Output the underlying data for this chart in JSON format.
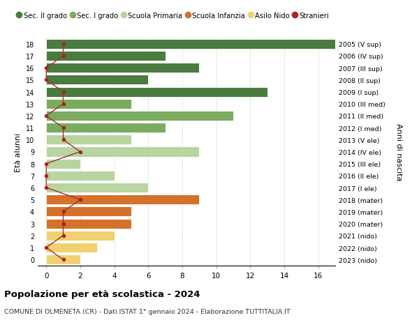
{
  "ages": [
    18,
    17,
    16,
    15,
    14,
    13,
    12,
    11,
    10,
    9,
    8,
    7,
    6,
    5,
    4,
    3,
    2,
    1,
    0
  ],
  "years": [
    "2005 (V sup)",
    "2006 (IV sup)",
    "2007 (III sup)",
    "2008 (II sup)",
    "2009 (I sup)",
    "2010 (III med)",
    "2011 (II med)",
    "2012 (I med)",
    "2013 (V ele)",
    "2014 (IV ele)",
    "2015 (III ele)",
    "2016 (II ele)",
    "2017 (I ele)",
    "2018 (mater)",
    "2019 (mater)",
    "2020 (mater)",
    "2021 (nido)",
    "2022 (nido)",
    "2023 (nido)"
  ],
  "values": [
    17,
    7,
    9,
    6,
    13,
    5,
    11,
    7,
    5,
    9,
    2,
    4,
    6,
    9,
    5,
    5,
    4,
    3,
    2
  ],
  "stranieri": [
    1,
    1,
    0,
    0,
    1,
    1,
    0,
    1,
    1,
    2,
    0,
    0,
    0,
    2,
    1,
    1,
    1,
    0,
    1
  ],
  "colors": {
    "sec2": "#4a7c3f",
    "sec1": "#7aab5e",
    "primaria": "#b8d4a0",
    "infanzia": "#d4712a",
    "nido": "#f0d070",
    "stranieri_line": "#9e3333",
    "stranieri_dot": "#aa2222"
  },
  "school_types": {
    "sec2": [
      18,
      17,
      16,
      15,
      14
    ],
    "sec1": [
      13,
      12,
      11
    ],
    "primaria": [
      10,
      9,
      8,
      7,
      6
    ],
    "infanzia": [
      5,
      4,
      3
    ],
    "nido": [
      2,
      1,
      0
    ]
  },
  "legend_labels": [
    "Sec. II grado",
    "Sec. I grado",
    "Scuola Primaria",
    "Scuola Infanzia",
    "Asilo Nido",
    "Stranieri"
  ],
  "ylabel_left": "Età alunni",
  "ylabel_right": "Anni di nascita",
  "title": "Popolazione per età scolastica - 2024",
  "subtitle": "COMUNE DI OLMENETA (CR) - Dati ISTAT 1° gennaio 2024 - Elaborazione TUTTITALIA.IT",
  "xlim": [
    -0.5,
    17
  ],
  "ylim": [
    -0.5,
    18.5
  ],
  "xticks": [
    0,
    2,
    4,
    6,
    8,
    10,
    12,
    14,
    16
  ],
  "background_color": "#ffffff",
  "grid_color": "#dddddd"
}
